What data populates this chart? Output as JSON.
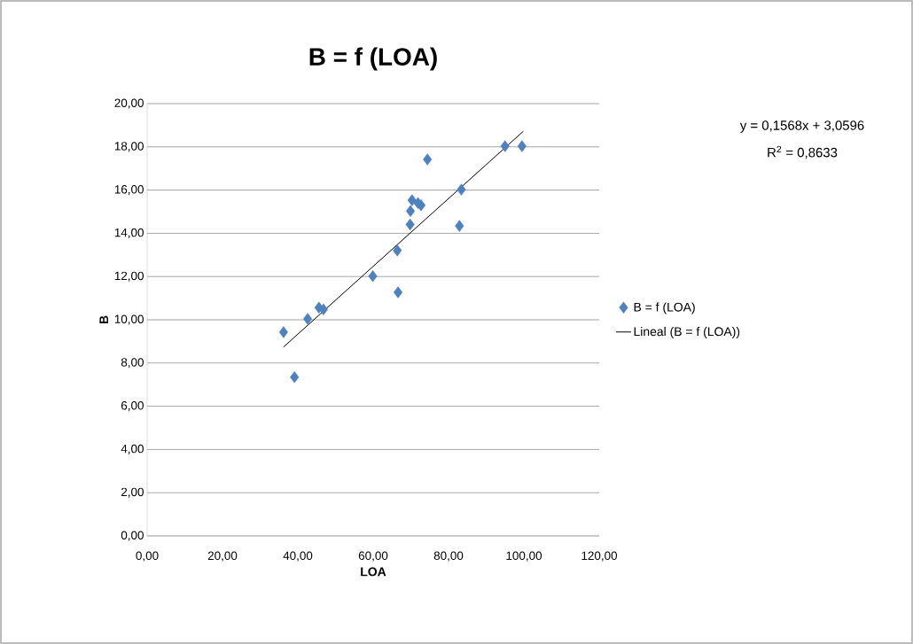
{
  "chart_data": {
    "type": "scatter",
    "title": "B = f (LOA)",
    "xlabel": "LOA",
    "ylabel": "B",
    "xlim": [
      0,
      120
    ],
    "ylim": [
      0,
      20
    ],
    "xticks": [
      {
        "value": 0,
        "label": "0,00"
      },
      {
        "value": 20,
        "label": "20,00"
      },
      {
        "value": 40,
        "label": "40,00"
      },
      {
        "value": 60,
        "label": "60,00"
      },
      {
        "value": 80,
        "label": "80,00"
      },
      {
        "value": 100,
        "label": "100,00"
      },
      {
        "value": 120,
        "label": "120,00"
      }
    ],
    "yticks": [
      {
        "value": 0,
        "label": "0,00"
      },
      {
        "value": 2,
        "label": "2,00"
      },
      {
        "value": 4,
        "label": "4,00"
      },
      {
        "value": 6,
        "label": "6,00"
      },
      {
        "value": 8,
        "label": "8,00"
      },
      {
        "value": 10,
        "label": "10,00"
      },
      {
        "value": 12,
        "label": "12,00"
      },
      {
        "value": 14,
        "label": "14,00"
      },
      {
        "value": 16,
        "label": "16,00"
      },
      {
        "value": 18,
        "label": "18,00"
      },
      {
        "value": 20,
        "label": "20,00"
      }
    ],
    "grid": "y",
    "legend": "right",
    "series": [
      {
        "name": "B = f (LOA)",
        "marker": "diamond",
        "color": "#4f81bd",
        "x": [
          36.2,
          39.1,
          42.6,
          45.6,
          46.8,
          59.9,
          66.4,
          66.6,
          69.8,
          69.9,
          70.3,
          71.9,
          72.7,
          74.4,
          83.4,
          82.9,
          95.0,
          99.5
        ],
        "values": [
          9.43,
          7.35,
          10.04,
          10.56,
          10.48,
          12.02,
          13.21,
          11.27,
          14.41,
          15.03,
          15.53,
          15.4,
          15.3,
          17.42,
          16.02,
          14.34,
          18.03,
          18.03
        ]
      },
      {
        "name": "Lineal (B = f (LOA))",
        "type": "line",
        "marker": "none",
        "color": "#000000",
        "x": [
          36.2,
          99.85
        ],
        "values": [
          8.74,
          18.72
        ]
      }
    ],
    "annotations": [
      "y = 0,1568x + 3,0596",
      "R$^{2}$ = 0,8633"
    ]
  }
}
